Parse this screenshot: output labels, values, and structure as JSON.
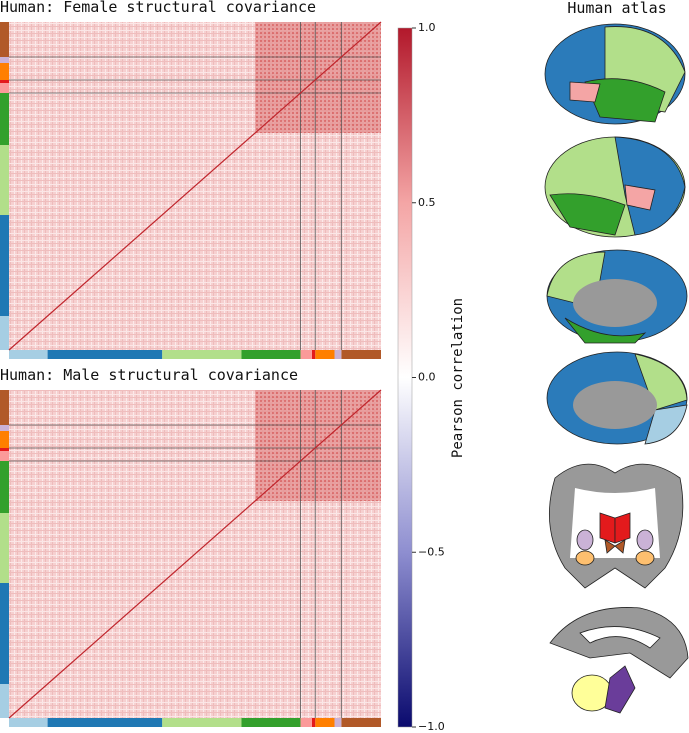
{
  "panels": [
    {
      "title": "Human: Female structural covariance"
    },
    {
      "title": "Human: Male structural covariance"
    }
  ],
  "colorbar": {
    "label": "Pearson correlation",
    "lim": [
      -1,
      1
    ],
    "ticks": [
      {
        "value": 1,
        "label": "1.0"
      },
      {
        "value": 0.5,
        "label": "0.5"
      },
      {
        "value": 0,
        "label": "0.0"
      },
      {
        "value": -0.5,
        "label": "−0.5"
      },
      {
        "value": -1,
        "label": "−1.0"
      }
    ]
  },
  "atlas": {
    "title": "Human atlas"
  }
}
